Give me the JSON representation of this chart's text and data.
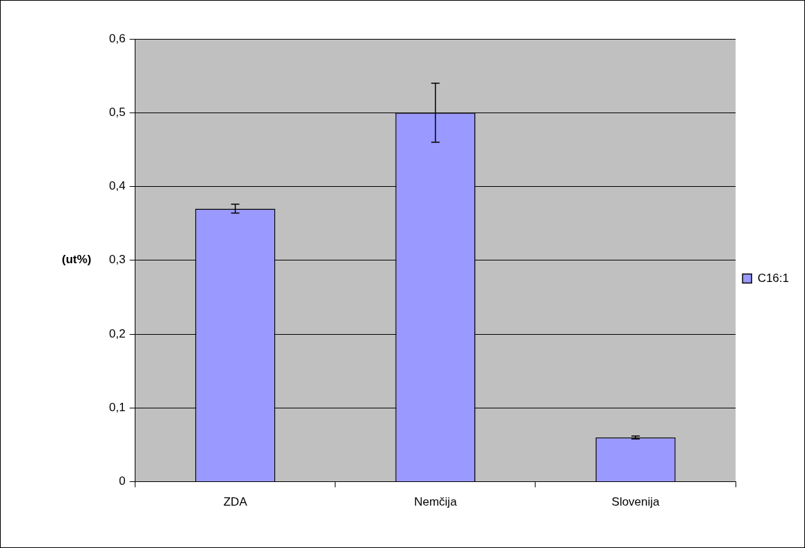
{
  "chart_data": {
    "type": "bar",
    "ylabel": "(ut%)",
    "categories": [
      "ZDA",
      "Nemčija",
      "Slovenija"
    ],
    "series": [
      {
        "name": "C16:1",
        "color": "#9999ff",
        "values": [
          0.37,
          0.5,
          0.06
        ],
        "errors": [
          0.006,
          0.04,
          0.002
        ]
      }
    ],
    "ylim": [
      0,
      0.6
    ],
    "yticks": [
      0,
      {
        "value": 0.1,
        "label": "0,1"
      },
      {
        "value": 0.2,
        "label": "0,2"
      },
      {
        "value": 0.3,
        "label": "0,3"
      },
      {
        "value": 0.4,
        "label": "0,4"
      },
      {
        "value": 0.5,
        "label": "0,5"
      },
      {
        "value": 0.6,
        "label": "0,6"
      }
    ],
    "grid": "y",
    "legend": "right"
  }
}
